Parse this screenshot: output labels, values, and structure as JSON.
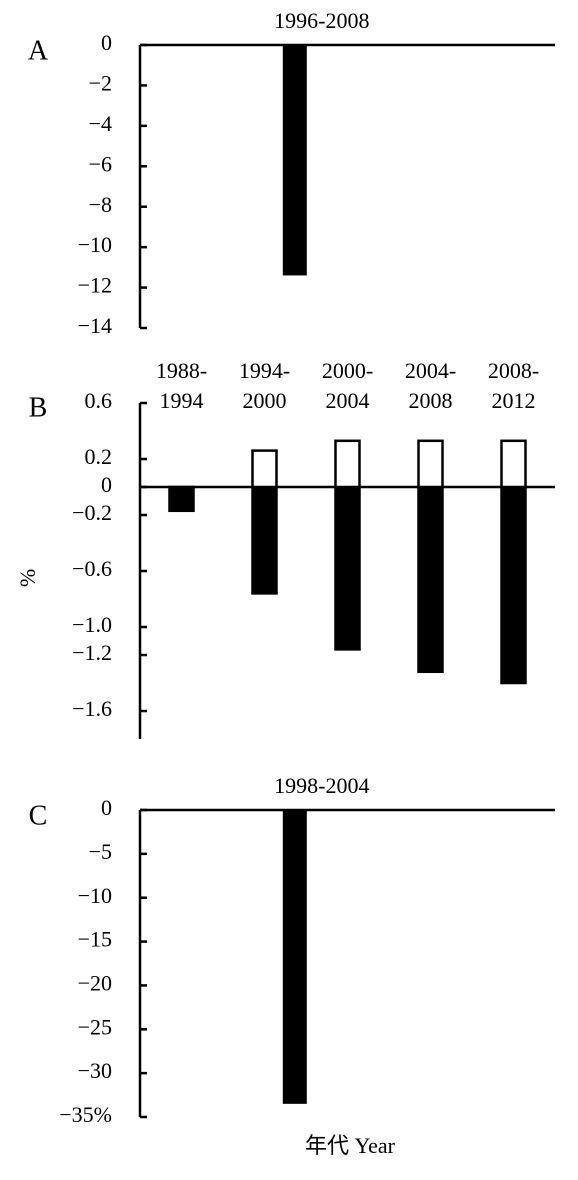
{
  "chart_data": [
    {
      "type": "bar",
      "annotation": "A",
      "categories": [
        "1996-2008"
      ],
      "values": [
        -11.4
      ],
      "color": "#000000",
      "ylim": [
        -14,
        0
      ],
      "yticks": [
        0,
        {
          "value": -2,
          "label": "−2"
        },
        {
          "value": -4,
          "label": "−4"
        },
        {
          "value": -6,
          "label": "−6"
        },
        {
          "value": -8,
          "label": "−8"
        },
        {
          "value": -10,
          "label": "−10"
        },
        {
          "value": -12,
          "label": "−12"
        },
        {
          "value": -14,
          "label": "−14"
        }
      ]
    },
    {
      "type": "bar",
      "annotation": "B",
      "ylabel": "%",
      "categories": [
        "1988-1994",
        "1994-2000",
        "2000-2004",
        "2004-2008",
        "2008-2012"
      ],
      "series": [
        {
          "color": "#000000",
          "values": [
            -0.17,
            -0.76,
            -1.16,
            -1.32,
            -1.4
          ]
        },
        {
          "color": "#ffffff",
          "values": [
            null,
            0.26,
            0.33,
            0.33,
            0.33
          ]
        }
      ],
      "ylim": [
        -1.8,
        0.65
      ],
      "yticks": [
        0.6,
        0.2,
        0,
        {
          "value": -0.2,
          "label": "−0.2"
        },
        {
          "value": -0.6,
          "label": "−0.6"
        },
        {
          "value": -1.0,
          "label": "−1.0"
        },
        {
          "value": -1.2,
          "label": "−1.2"
        },
        {
          "value": -1.6,
          "label": "−1.6"
        }
      ]
    },
    {
      "type": "bar",
      "annotation": "C",
      "xlabel": "年代 Year",
      "categories": [
        "1998-2004"
      ],
      "values": [
        -33.5
      ],
      "color": "#000000",
      "ylim": [
        -35,
        0
      ],
      "yticks": [
        0,
        {
          "value": -5,
          "label": "−5"
        },
        {
          "value": -10,
          "label": "−10"
        },
        {
          "value": -15,
          "label": "−15"
        },
        {
          "value": -20,
          "label": "−20"
        },
        {
          "value": -25,
          "label": "−25"
        },
        {
          "value": -30,
          "label": "−30"
        },
        {
          "value": -35,
          "label": "−35%"
        }
      ]
    }
  ]
}
